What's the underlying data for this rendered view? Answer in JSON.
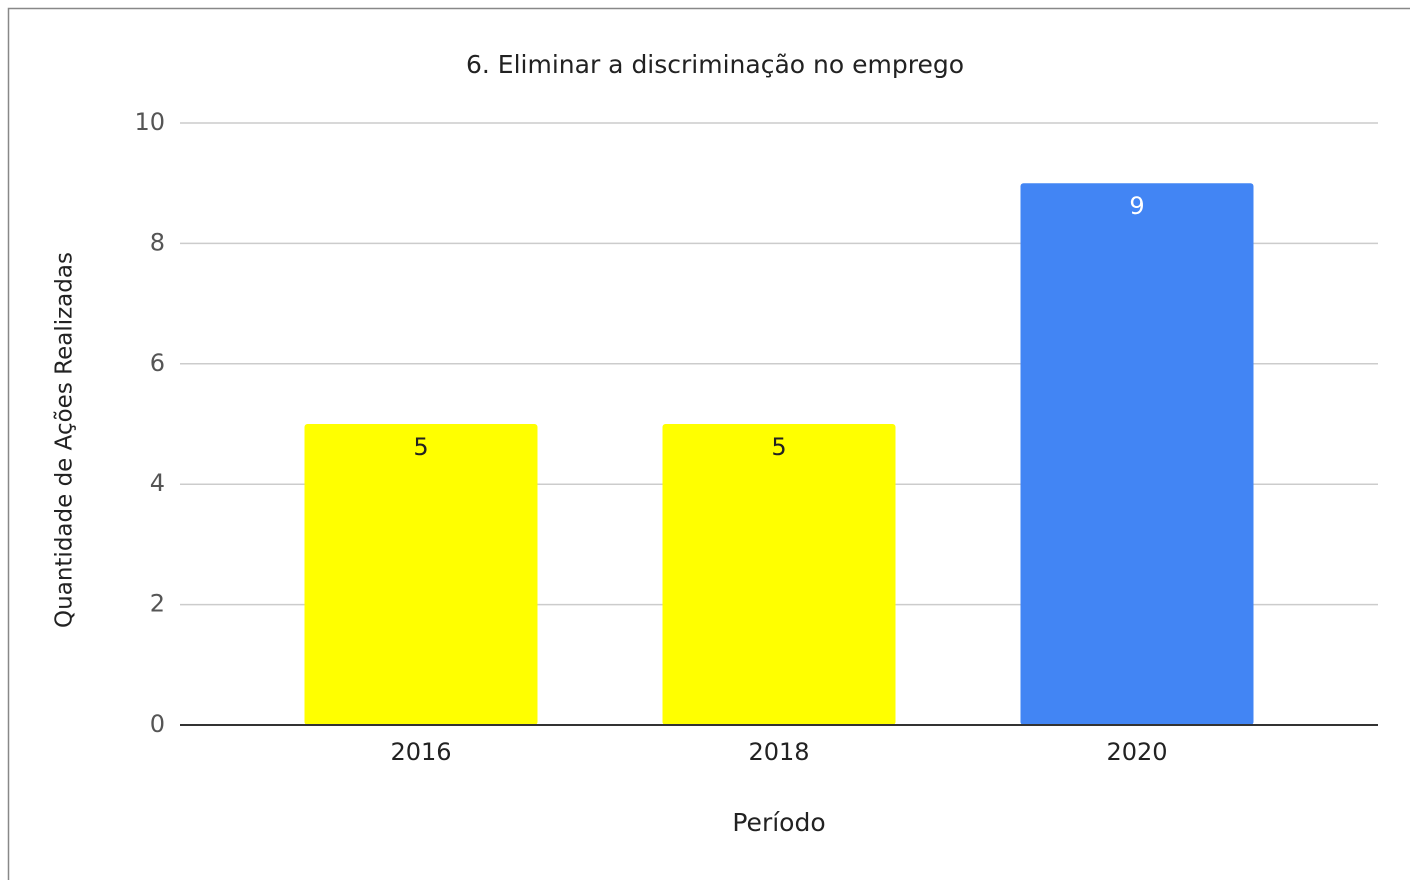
{
  "chart_data": {
    "type": "bar",
    "title": "6. Eliminar a discriminação no emprego",
    "x_label": "Período",
    "y_label": "Quantidade de Ações Realizadas",
    "categories": [
      "2016",
      "2018",
      "2020"
    ],
    "values": [
      5,
      5,
      9
    ],
    "colors": [
      "#ffff00",
      "#ffff00",
      "#4285f4"
    ],
    "ylim": [
      0,
      10
    ],
    "yticks": [
      0,
      2,
      4,
      6,
      8,
      10
    ],
    "grid": true
  }
}
